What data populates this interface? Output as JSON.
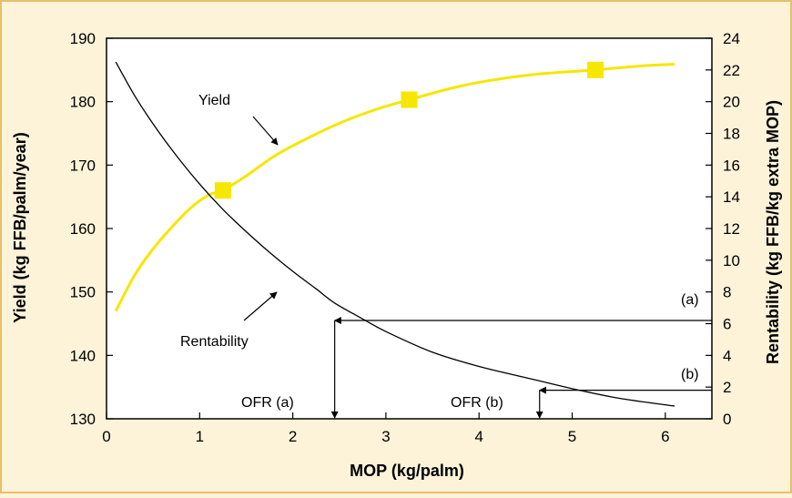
{
  "chart_data": {
    "type": "line",
    "xlabel": "MOP (kg/palm)",
    "ylabel": "Yield (kg FFB/palm/year)",
    "y2label": "Rentability (kg FFB/kg extra MOP)",
    "xlim": [
      0,
      6.5
    ],
    "ylim": [
      130,
      190
    ],
    "y2lim": [
      0,
      24
    ],
    "x_ticks": [
      "0",
      "1",
      "2",
      "3",
      "4",
      "5",
      "6"
    ],
    "y_ticks": [
      "130",
      "140",
      "150",
      "160",
      "170",
      "180",
      "190"
    ],
    "y2_ticks": [
      "0",
      "2",
      "4",
      "6",
      "8",
      "10",
      "12",
      "14",
      "16",
      "18",
      "20",
      "22",
      "24"
    ],
    "colors": {
      "yield": "#f7e600",
      "rentability": "#000000",
      "background": "#fdf3d9",
      "frame": "#e6c068"
    },
    "series": [
      {
        "name": "Yield",
        "axis": "left",
        "x": [
          0.1,
          0.3,
          0.5,
          0.7,
          0.9,
          1.1,
          1.25,
          1.5,
          1.8,
          2.1,
          2.5,
          2.9,
          3.25,
          3.7,
          4.1,
          4.6,
          5.25,
          5.7,
          6.1
        ],
        "values": [
          147,
          152.6,
          156.8,
          160.2,
          163.2,
          165.3,
          166.0,
          168.3,
          171.4,
          173.8,
          176.6,
          178.8,
          180.3,
          182.1,
          183.3,
          184.3,
          185.0,
          185.6,
          185.9
        ]
      },
      {
        "name": "Rentability",
        "axis": "right",
        "x": [
          0.1,
          0.3,
          0.5,
          0.75,
          1.0,
          1.25,
          1.5,
          1.75,
          2.0,
          2.25,
          2.45,
          2.75,
          3.0,
          3.5,
          4.0,
          4.5,
          5.0,
          5.5,
          6.1
        ],
        "values": [
          22.5,
          20.4,
          18.6,
          16.6,
          14.8,
          13.2,
          11.8,
          10.5,
          9.3,
          8.2,
          7.3,
          6.3,
          5.5,
          4.2,
          3.3,
          2.6,
          1.9,
          1.3,
          0.8
        ]
      }
    ],
    "markers": [
      {
        "x": 1.25,
        "y": 166
      },
      {
        "x": 3.25,
        "y": 180.3
      },
      {
        "x": 5.25,
        "y": 185
      }
    ],
    "labels": {
      "yield": "Yield",
      "rentability": "Rentability",
      "ofr_a": "OFR (a)",
      "ofr_b": "OFR (b)",
      "level_a": "(a)",
      "level_b": "(b)"
    },
    "optimum_a": {
      "x": 2.45,
      "y2": 6.2
    },
    "optimum_b": {
      "x": 4.65,
      "y2": 1.8
    }
  }
}
